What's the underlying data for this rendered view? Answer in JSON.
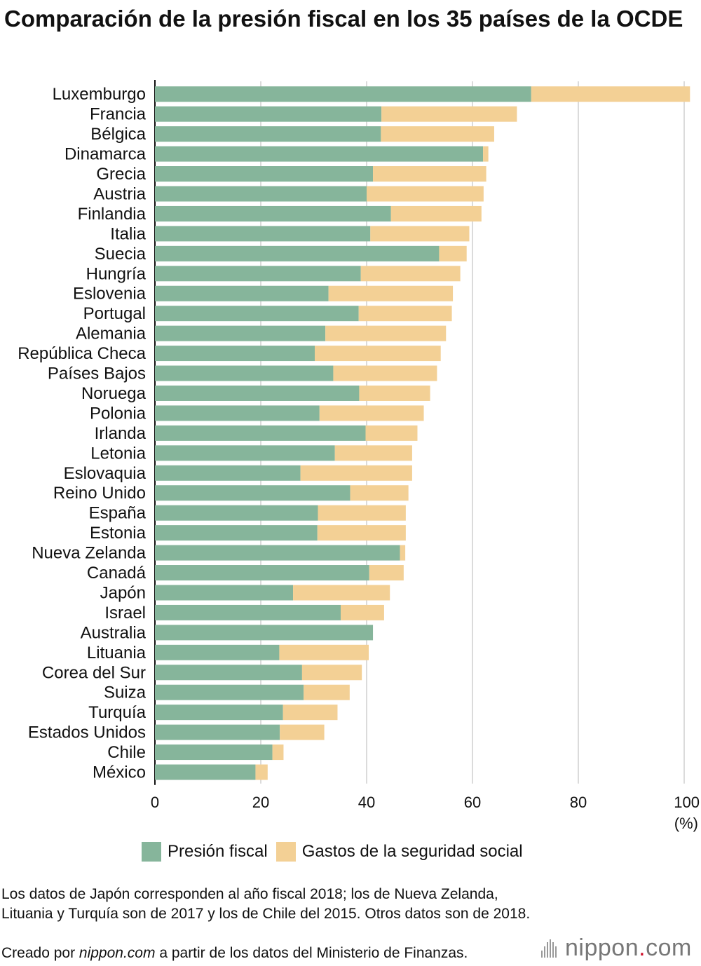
{
  "title": "Comparación de la presión fiscal en los 35 países de la OCDE",
  "chart_data": {
    "type": "bar",
    "orientation": "horizontal",
    "stacked": true,
    "categories": [
      "Luxemburgo",
      "Francia",
      "Bélgica",
      "Dinamarca",
      "Grecia",
      "Austria",
      "Finlandia",
      "Italia",
      "Suecia",
      "Hungría",
      "Eslovenia",
      "Portugal",
      "Alemania",
      "República Checa",
      "Países Bajos",
      "Noruega",
      "Polonia",
      "Irlanda",
      "Letonia",
      "Eslovaquia",
      "Reino Unido",
      "España",
      "Estonia",
      "Nueva Zelanda",
      "Canadá",
      "Japón",
      "Israel",
      "Australia",
      "Lituania",
      "Corea del Sur",
      "Suiza",
      "Turquía",
      "Estados Unidos",
      "Chile",
      "México"
    ],
    "series": [
      {
        "name": "Presión fiscal",
        "color": "#86b59b",
        "values": [
          71.1,
          42.8,
          42.7,
          62.0,
          41.2,
          40.0,
          44.6,
          40.7,
          53.7,
          38.9,
          32.8,
          38.5,
          32.2,
          30.2,
          33.7,
          38.6,
          31.1,
          39.8,
          34.0,
          27.5,
          36.9,
          30.8,
          30.7,
          46.3,
          40.5,
          26.1,
          35.1,
          41.2,
          23.5,
          27.8,
          28.1,
          24.2,
          23.6,
          22.2,
          19.0
        ],
        "bar_labels": []
      },
      {
        "name": "Gastos de la seguridad social",
        "color": "#f3d095",
        "values": [
          30.0,
          25.6,
          21.4,
          1.0,
          21.4,
          22.1,
          17.1,
          18.7,
          5.2,
          18.8,
          23.5,
          17.6,
          22.8,
          23.8,
          19.6,
          13.4,
          19.7,
          9.8,
          14.6,
          21.1,
          11.0,
          16.6,
          16.7,
          1.0,
          6.5,
          18.3,
          8.2,
          0.0,
          16.9,
          11.3,
          8.7,
          10.3,
          8.4,
          2.1,
          2.3
        ],
        "bar_labels": []
      }
    ],
    "xlim": [
      0,
      100
    ],
    "xticks": [
      "0",
      "20",
      "40",
      "60",
      "80",
      "100"
    ],
    "xlabel": "(%)",
    "grid": true,
    "legend_position": "bottom"
  },
  "legend": {
    "items": [
      {
        "label": "Presión fiscal",
        "color": "#86b59b"
      },
      {
        "label": "Gastos de la seguridad social",
        "color": "#f3d095"
      }
    ]
  },
  "notes": {
    "text": "Los datos de Japón corresponden al año fiscal 2018; los de Nueva Zelanda, Lituania y Turquía son de 2017 y los de Chile del 2015. Otros datos son de 2018.",
    "credit_prefix": "Creado por ",
    "credit_site": "nippon.com",
    "credit_suffix": " a partir de los datos del Ministerio de Finanzas."
  },
  "brand": {
    "name": "nippon",
    "dot": ".",
    "tld": "com"
  }
}
